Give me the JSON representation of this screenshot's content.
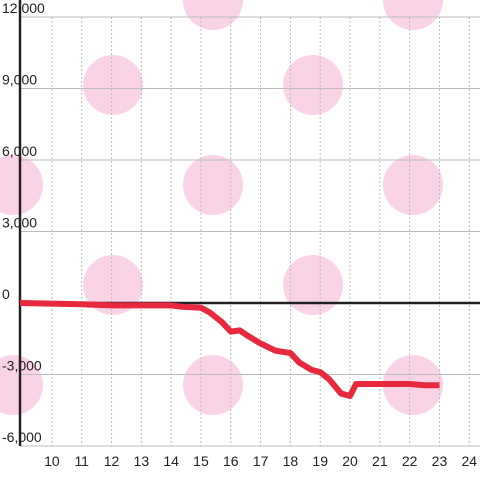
{
  "chart_data": {
    "type": "line",
    "x": [
      8.93,
      11,
      12,
      14,
      14.3,
      15,
      15.3,
      15.7,
      16,
      16.3,
      16.6,
      17,
      17.5,
      18,
      18.3,
      18.7,
      19,
      19.3,
      19.7,
      20,
      20.2,
      21,
      22,
      22.5,
      23
    ],
    "series": [
      {
        "color": "#e8283c",
        "values": [
          0,
          -50,
          -100,
          -100,
          -150,
          -200,
          -400,
          -800,
          -1200,
          -1150,
          -1400,
          -1700,
          -2000,
          -2100,
          -2500,
          -2800,
          -2900,
          -3200,
          -3800,
          -3900,
          -3400,
          -3400,
          -3400,
          -3450,
          -3450
        ]
      }
    ],
    "xlim": [
      8.93,
      24.36
    ],
    "xticks": [
      10,
      11,
      12,
      13,
      14,
      15,
      16,
      17,
      18,
      19,
      20,
      21,
      22,
      23,
      24
    ],
    "ylim": [
      -6000,
      12000
    ],
    "yticks": [
      {
        "value": -6000,
        "label": "-6,000"
      },
      {
        "value": -3000,
        "label": "-3,000"
      },
      0,
      {
        "value": 3000,
        "label": "3,000"
      },
      {
        "value": 6000,
        "label": "6,000"
      },
      {
        "value": 9000,
        "label": "9,000"
      },
      {
        "value": 12000,
        "label": "12,000"
      }
    ],
    "grid": true
  }
}
